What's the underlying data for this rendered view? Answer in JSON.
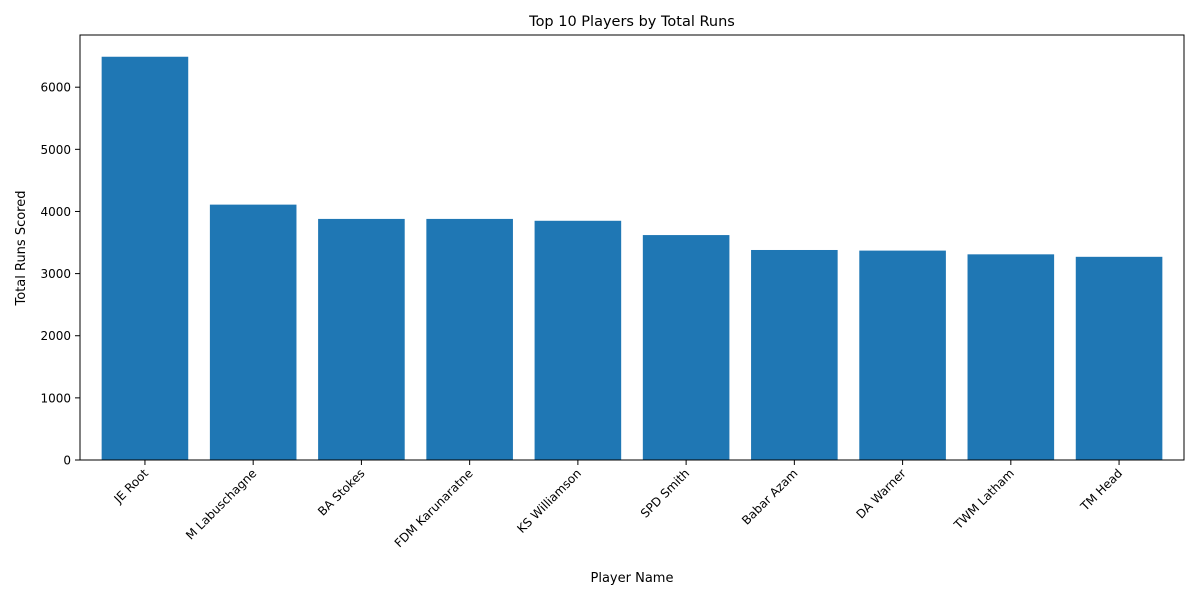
{
  "chart_data": {
    "type": "bar",
    "title": "Top 10 Players by Total Runs",
    "xlabel": "Player Name",
    "ylabel": "Total Runs Scored",
    "categories": [
      "JE Root",
      "M Labuschagne",
      "BA Stokes",
      "FDM Karunaratne",
      "KS Williamson",
      "SPD Smith",
      "Babar Azam",
      "DA Warner",
      "TWM Latham",
      "TM Head"
    ],
    "values": [
      6490,
      4110,
      3880,
      3880,
      3850,
      3620,
      3380,
      3370,
      3310,
      3270
    ],
    "ylim": [
      0,
      6840
    ],
    "yticks": [
      0,
      1000,
      2000,
      3000,
      4000,
      5000,
      6000
    ],
    "grid": false,
    "bar_color": "#1f77b4"
  }
}
